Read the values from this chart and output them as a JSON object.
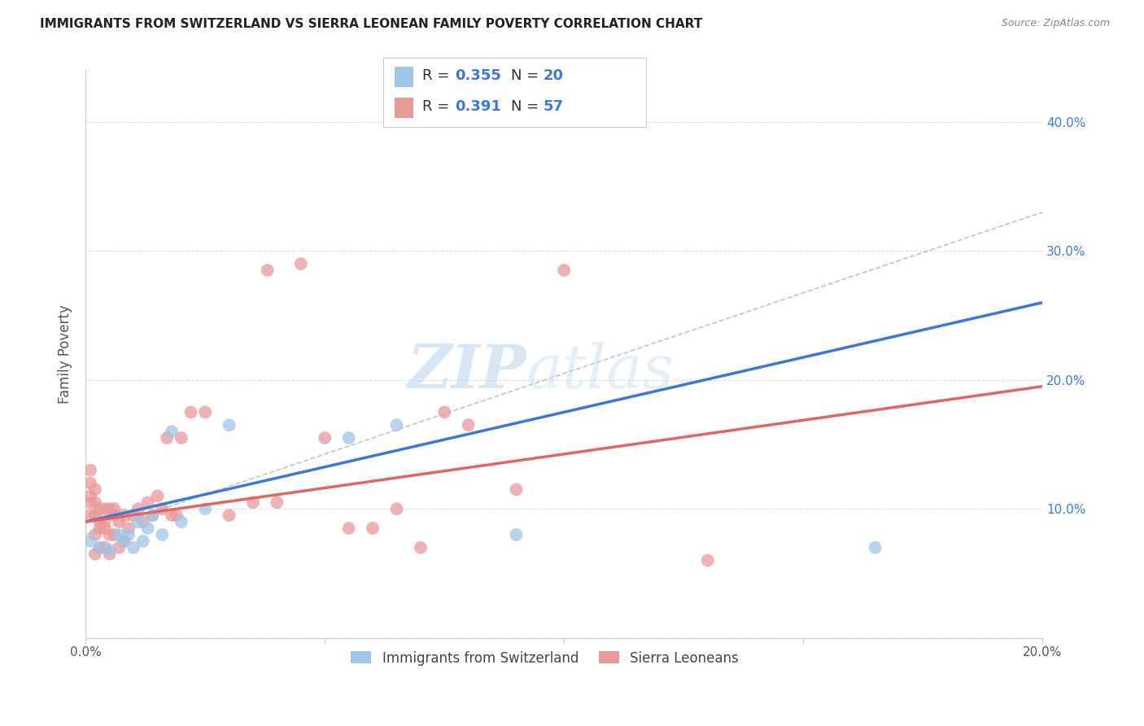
{
  "title": "IMMIGRANTS FROM SWITZERLAND VS SIERRA LEONEAN FAMILY POVERTY CORRELATION CHART",
  "source": "Source: ZipAtlas.com",
  "ylabel": "Family Poverty",
  "xmin": 0.0,
  "xmax": 0.2,
  "ymin": 0.0,
  "ymax": 0.44,
  "R1": "0.355",
  "N1": "20",
  "R2": "0.391",
  "N2": "57",
  "color_blue": "#9fc5e8",
  "color_pink": "#ea9999",
  "line_blue": "#3c78d8",
  "line_pink": "#e06666",
  "dash_color": "#aaaaaa",
  "blue_x": [
    0.001,
    0.003,
    0.005,
    0.007,
    0.008,
    0.009,
    0.01,
    0.011,
    0.012,
    0.013,
    0.014,
    0.016,
    0.018,
    0.02,
    0.025,
    0.03,
    0.055,
    0.065,
    0.09,
    0.165
  ],
  "blue_y": [
    0.075,
    0.07,
    0.068,
    0.08,
    0.075,
    0.08,
    0.07,
    0.09,
    0.075,
    0.085,
    0.095,
    0.08,
    0.16,
    0.09,
    0.1,
    0.165,
    0.155,
    0.165,
    0.08,
    0.07
  ],
  "pink_x": [
    0.001,
    0.001,
    0.001,
    0.001,
    0.001,
    0.002,
    0.002,
    0.002,
    0.002,
    0.002,
    0.003,
    0.003,
    0.003,
    0.003,
    0.004,
    0.004,
    0.004,
    0.004,
    0.005,
    0.005,
    0.005,
    0.006,
    0.006,
    0.006,
    0.007,
    0.007,
    0.008,
    0.008,
    0.009,
    0.01,
    0.011,
    0.012,
    0.013,
    0.014,
    0.015,
    0.016,
    0.017,
    0.018,
    0.019,
    0.02,
    0.022,
    0.025,
    0.03,
    0.035,
    0.038,
    0.04,
    0.045,
    0.05,
    0.055,
    0.06,
    0.065,
    0.07,
    0.075,
    0.08,
    0.09,
    0.1,
    0.13
  ],
  "pink_y": [
    0.095,
    0.105,
    0.11,
    0.12,
    0.13,
    0.065,
    0.08,
    0.095,
    0.105,
    0.115,
    0.07,
    0.085,
    0.09,
    0.1,
    0.07,
    0.085,
    0.09,
    0.1,
    0.065,
    0.08,
    0.1,
    0.08,
    0.095,
    0.1,
    0.07,
    0.09,
    0.075,
    0.095,
    0.085,
    0.095,
    0.1,
    0.09,
    0.105,
    0.095,
    0.11,
    0.1,
    0.155,
    0.095,
    0.095,
    0.155,
    0.175,
    0.175,
    0.095,
    0.105,
    0.285,
    0.105,
    0.29,
    0.155,
    0.085,
    0.085,
    0.1,
    0.07,
    0.175,
    0.165,
    0.115,
    0.285,
    0.06
  ],
  "legend_label1": "Immigrants from Switzerland",
  "legend_label2": "Sierra Leoneans"
}
